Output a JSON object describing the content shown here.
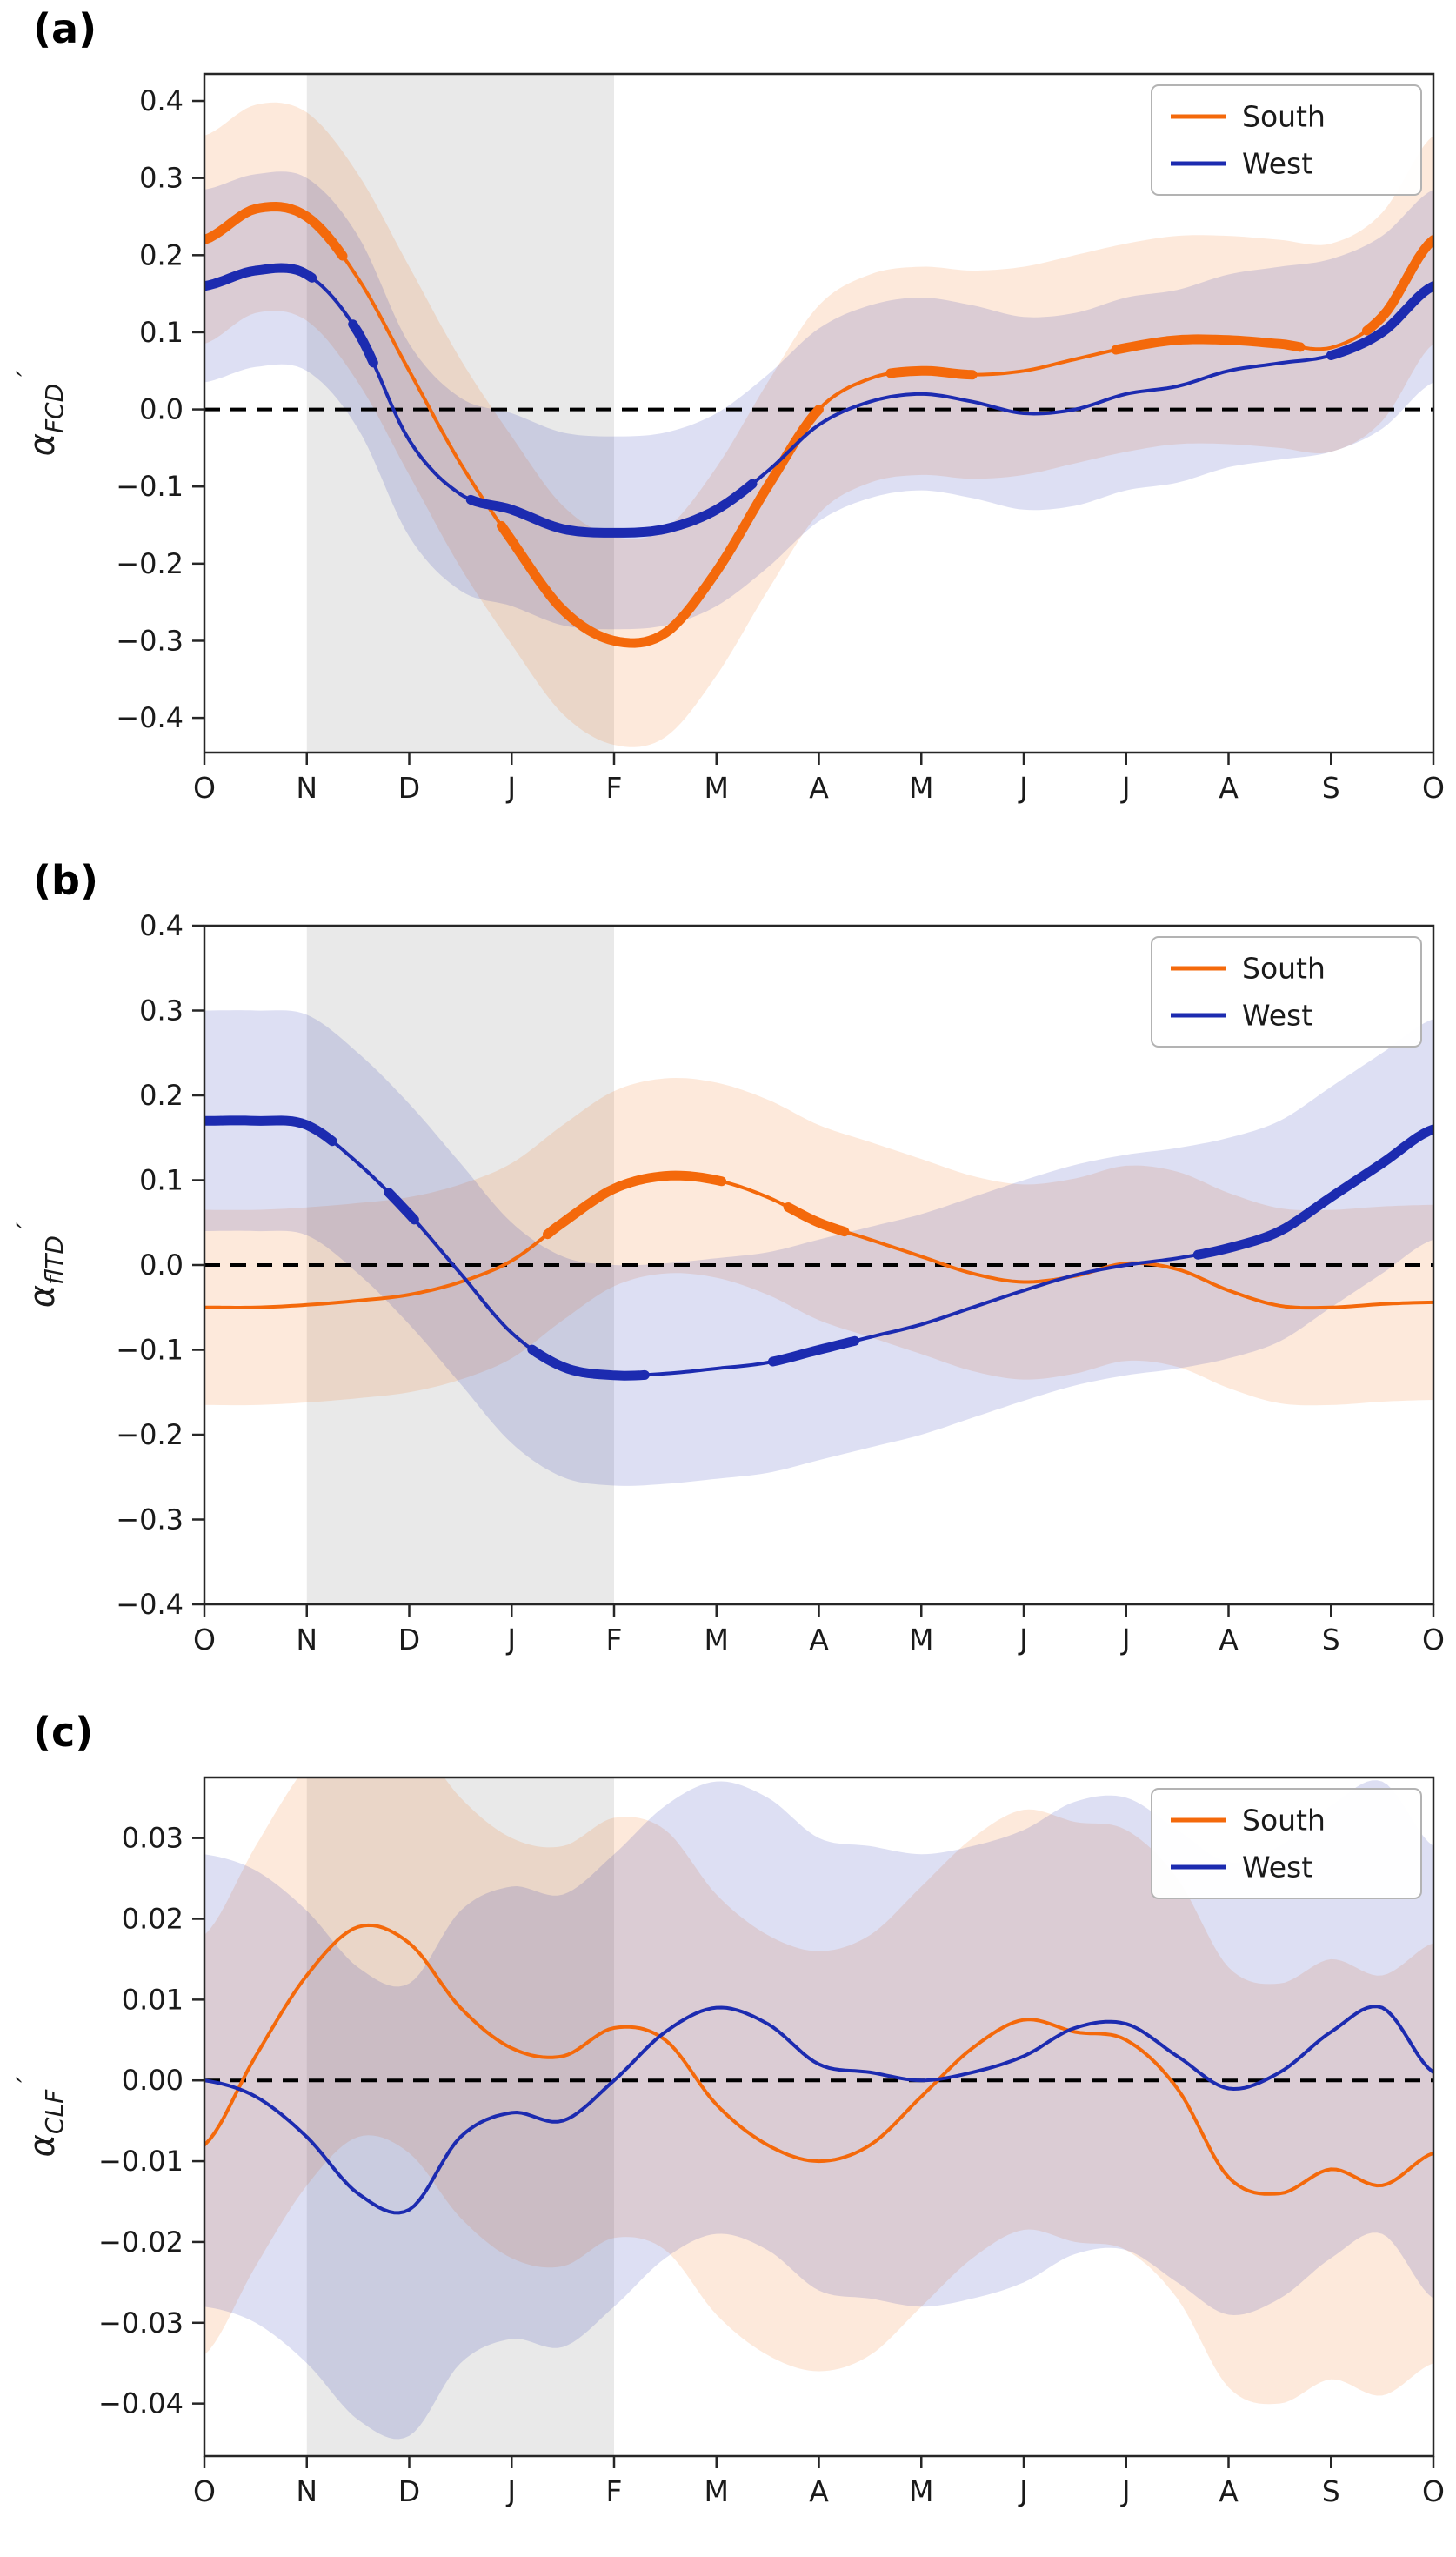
{
  "figure_title": "",
  "months": [
    "O",
    "N",
    "D",
    "J",
    "F",
    "M",
    "A",
    "M",
    "J",
    "J",
    "A",
    "S",
    "O"
  ],
  "colors": {
    "south": "#f4690b",
    "west": "#1c2bb0",
    "shade": "#e9e9e9",
    "zero_line": "#000000",
    "axis": "#262626"
  },
  "chart_data": [
    {
      "type": "line",
      "panel_label": "(a)",
      "ylabel": {
        "base": "α",
        "sub": "FCD",
        "prime": "′"
      },
      "xlabel": "",
      "xtick_labels": [
        "O",
        "N",
        "D",
        "J",
        "F",
        "M",
        "A",
        "M",
        "J",
        "J",
        "A",
        "S",
        "O"
      ],
      "x": [
        0,
        0.5,
        1,
        1.5,
        2,
        2.5,
        3,
        3.5,
        4,
        4.5,
        5,
        5.5,
        6,
        6.5,
        7,
        7.5,
        8,
        8.5,
        9,
        9.5,
        10,
        10.5,
        11,
        11.5,
        12
      ],
      "ylim": [
        -0.445,
        0.435
      ],
      "yticks": [
        -0.4,
        -0.3,
        -0.2,
        -0.1,
        0,
        0.1,
        0.2,
        0.3,
        0.4
      ],
      "ytick_labels": [
        "−0.4",
        "−0.3",
        "−0.2",
        "−0.1",
        "0.0",
        "0.1",
        "0.2",
        "0.3",
        "0.4"
      ],
      "grid": false,
      "zero_line": true,
      "shaded_xspan": [
        1,
        4
      ],
      "legend_position": "upper right",
      "legend": [
        "South",
        "West"
      ],
      "series": [
        {
          "name": "South",
          "color": "#f4690b",
          "band_halfwidth": 0.135,
          "values": [
            0.22,
            0.26,
            0.25,
            0.17,
            0.05,
            -0.07,
            -0.17,
            -0.26,
            -0.3,
            -0.29,
            -0.21,
            -0.1,
            0.0,
            0.04,
            0.05,
            0.045,
            0.05,
            0.065,
            0.08,
            0.09,
            0.09,
            0.085,
            0.08,
            0.12,
            0.22
          ],
          "thick_segments": [
            [
              0,
              1.35
            ],
            [
              2.9,
              6.0
            ],
            [
              6.7,
              7.5
            ],
            [
              8.9,
              10.7
            ],
            [
              11.35,
              12
            ]
          ]
        },
        {
          "name": "West",
          "color": "#1c2bb0",
          "band_halfwidth": 0.125,
          "values": [
            0.16,
            0.18,
            0.175,
            0.1,
            -0.04,
            -0.11,
            -0.13,
            -0.155,
            -0.16,
            -0.155,
            -0.13,
            -0.08,
            -0.02,
            0.01,
            0.02,
            0.01,
            -0.005,
            0.0,
            0.02,
            0.03,
            0.05,
            0.06,
            0.07,
            0.1,
            0.16
          ],
          "thick_segments": [
            [
              0,
              1.05
            ],
            [
              1.45,
              1.65
            ],
            [
              2.6,
              5.35
            ],
            [
              11.0,
              12
            ]
          ]
        }
      ]
    },
    {
      "type": "line",
      "panel_label": "(b)",
      "ylabel": {
        "base": "α",
        "sub": "flTD",
        "prime": "′"
      },
      "xlabel": "",
      "xtick_labels": [
        "O",
        "N",
        "D",
        "J",
        "F",
        "M",
        "A",
        "M",
        "J",
        "J",
        "A",
        "S",
        "O"
      ],
      "x": [
        0,
        0.5,
        1,
        1.5,
        2,
        2.5,
        3,
        3.5,
        4,
        4.5,
        5,
        5.5,
        6,
        6.5,
        7,
        7.5,
        8,
        8.5,
        9,
        9.5,
        10,
        10.5,
        11,
        11.5,
        12
      ],
      "ylim": [
        -0.4,
        0.4
      ],
      "yticks": [
        -0.4,
        -0.3,
        -0.2,
        -0.1,
        0,
        0.1,
        0.2,
        0.3,
        0.4
      ],
      "ytick_labels": [
        "−0.4",
        "−0.3",
        "−0.2",
        "−0.1",
        "0.0",
        "0.1",
        "0.2",
        "0.3",
        "0.4"
      ],
      "grid": false,
      "zero_line": true,
      "shaded_xspan": [
        1,
        4
      ],
      "legend_position": "upper right",
      "legend": [
        "South",
        "West"
      ],
      "series": [
        {
          "name": "South",
          "color": "#f4690b",
          "band_halfwidth": 0.115,
          "values": [
            -0.05,
            -0.05,
            -0.047,
            -0.042,
            -0.035,
            -0.02,
            0.005,
            0.05,
            0.09,
            0.105,
            0.1,
            0.08,
            0.05,
            0.03,
            0.01,
            -0.01,
            -0.02,
            -0.013,
            0.002,
            -0.005,
            -0.03,
            -0.048,
            -0.05,
            -0.046,
            -0.044
          ],
          "thick_segments": [
            [
              3.35,
              5.05
            ],
            [
              5.7,
              6.25
            ]
          ]
        },
        {
          "name": "West",
          "color": "#1c2bb0",
          "band_halfwidth": 0.13,
          "values": [
            0.17,
            0.17,
            0.165,
            0.12,
            0.06,
            -0.01,
            -0.08,
            -0.12,
            -0.13,
            -0.128,
            -0.122,
            -0.115,
            -0.1,
            -0.085,
            -0.07,
            -0.05,
            -0.03,
            -0.012,
            0.0,
            0.008,
            0.02,
            0.04,
            0.08,
            0.12,
            0.16
          ],
          "thick_segments": [
            [
              0,
              1.25
            ],
            [
              1.8,
              2.05
            ],
            [
              3.2,
              4.3
            ],
            [
              5.55,
              6.35
            ],
            [
              9.7,
              12
            ]
          ]
        }
      ]
    },
    {
      "type": "line",
      "panel_label": "(c)",
      "ylabel": {
        "base": "α",
        "sub": "CLF",
        "prime": "′"
      },
      "xlabel": "",
      "xtick_labels": [
        "O",
        "N",
        "D",
        "J",
        "F",
        "M",
        "A",
        "M",
        "J",
        "J",
        "A",
        "S",
        "O"
      ],
      "x": [
        0,
        0.5,
        1,
        1.5,
        2,
        2.5,
        3,
        3.5,
        4,
        4.5,
        5,
        5.5,
        6,
        6.5,
        7,
        7.5,
        8,
        8.5,
        9,
        9.5,
        10,
        10.5,
        11,
        11.5,
        12
      ],
      "ylim": [
        -0.0465,
        0.0375
      ],
      "yticks": [
        -0.04,
        -0.03,
        -0.02,
        -0.01,
        0,
        0.01,
        0.02,
        0.03
      ],
      "ytick_labels": [
        "−0.04",
        "−0.03",
        "−0.02",
        "−0.01",
        "0.00",
        "0.01",
        "0.02",
        "0.03"
      ],
      "grid": false,
      "zero_line": true,
      "shaded_xspan": [
        1,
        4
      ],
      "legend_position": "upper right",
      "legend": [
        "South",
        "West"
      ],
      "series": [
        {
          "name": "South",
          "color": "#f4690b",
          "band_halfwidth": 0.026,
          "values": [
            -0.008,
            0.003,
            0.013,
            0.019,
            0.017,
            0.009,
            0.004,
            0.003,
            0.0065,
            0.005,
            -0.003,
            -0.008,
            -0.01,
            -0.008,
            -0.002,
            0.004,
            0.0075,
            0.006,
            0.005,
            -0.001,
            -0.012,
            -0.014,
            -0.011,
            -0.013,
            -0.009
          ],
          "thick_segments": []
        },
        {
          "name": "West",
          "color": "#1c2bb0",
          "band_halfwidth": 0.028,
          "values": [
            0.0,
            -0.002,
            -0.007,
            -0.014,
            -0.016,
            -0.007,
            -0.004,
            -0.005,
            0.0,
            0.006,
            0.009,
            0.007,
            0.002,
            0.001,
            0.0,
            0.001,
            0.003,
            0.0065,
            0.007,
            0.003,
            -0.001,
            0.001,
            0.006,
            0.009,
            0.001
          ],
          "thick_segments": []
        }
      ]
    }
  ]
}
